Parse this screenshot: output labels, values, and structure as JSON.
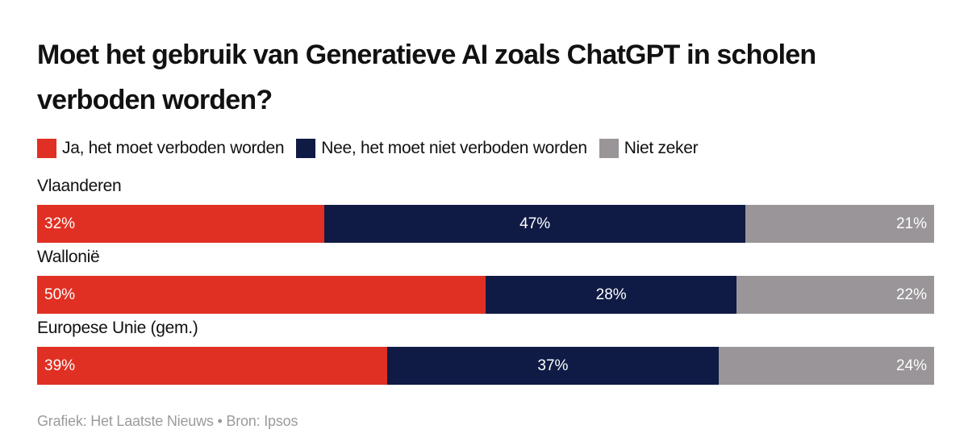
{
  "chart_data": {
    "type": "bar",
    "orientation": "horizontal",
    "stacked": true,
    "title": "Moet het gebruik van Generatieve AI zoals ChatGPT in scholen verboden worden?",
    "categories": [
      "Vlaanderen",
      "Wallonië",
      "Europese Unie (gem.)"
    ],
    "series": [
      {
        "name": "Ja, het moet verboden worden",
        "color": "#e03023",
        "values": [
          32,
          50,
          39
        ]
      },
      {
        "name": "Nee, het moet niet verboden worden",
        "color": "#0f1b45",
        "values": [
          47,
          28,
          37
        ]
      },
      {
        "name": "Niet zeker",
        "color": "#9a9598",
        "values": [
          21,
          22,
          24
        ]
      }
    ],
    "value_suffix": "%",
    "legend_position": "top-left",
    "grid": false
  },
  "footer": {
    "text": "Grafiek: Het Laatste Nieuws • Bron: Ipsos"
  }
}
